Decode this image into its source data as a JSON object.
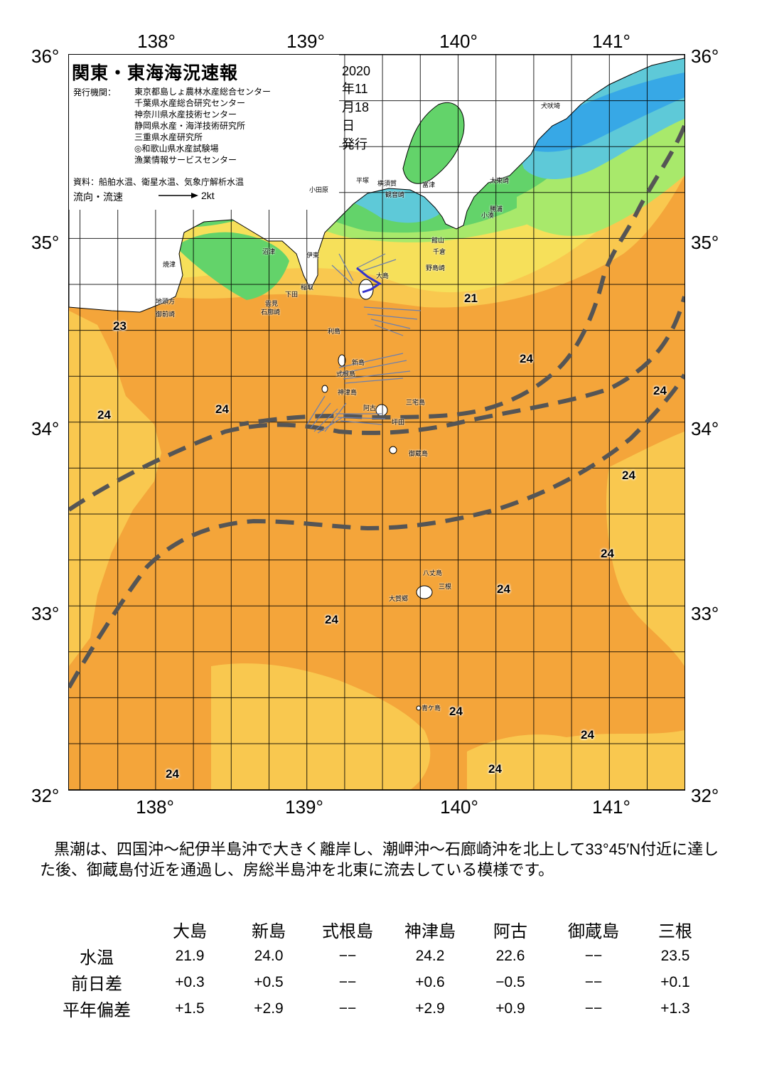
{
  "map": {
    "title": "関東・東海海況速報",
    "issue_date": "2020年11月18日 発行",
    "issuer_label": "発行機関：",
    "issuers": [
      "東京都島しょ農林水産総合センター",
      "千葉県水産総合研究センター",
      "神奈川県水産技術センター",
      "静岡県水産・海洋技術研究所",
      "三重県水産研究所",
      "◎和歌山県水産試験場",
      "漁業情報サービスセンター"
    ],
    "source": "資料：船舶水温、衛星水温、気象庁解析水温",
    "legend_label": "流向・流速",
    "legend_unit": "2kt",
    "lon_labels": [
      "138°",
      "139°",
      "140°",
      "141°"
    ],
    "lat_labels": [
      "36°",
      "35°",
      "34°",
      "33°",
      "32°"
    ],
    "temperature_labels": [
      "23",
      "24",
      "24",
      "21",
      "24",
      "24",
      "24",
      "24",
      "24",
      "24",
      "24",
      "24",
      "24",
      "24"
    ],
    "place_names": [
      "小田原",
      "平塚",
      "横須賀",
      "観音崎",
      "富津",
      "太東崎",
      "犬吠埼",
      "小湊",
      "勝浦",
      "館山",
      "千倉",
      "野島崎",
      "伊東",
      "稲取",
      "下田",
      "石廊崎",
      "沼津",
      "焼津",
      "地頭方",
      "御前崎",
      "利島",
      "新島",
      "式根島",
      "神津島",
      "三宅島",
      "阿古",
      "坪田",
      "御蔵島",
      "八丈島",
      "三根",
      "大賀郷",
      "青ケ島",
      "大島",
      "雲見"
    ],
    "colors": {
      "land": "#ffffff",
      "cold": "#37a8e6",
      "cool": "#5ec9d8",
      "green": "#63d36a",
      "lightgreen": "#a8e96b",
      "yellow": "#f6e05a",
      "lightorange": "#f9c84f",
      "orange": "#f4a53a",
      "kuroshio_line": "#555555",
      "current_vector": "#6a7fb0"
    }
  },
  "description": "黒潮は、四国沖～紀伊半島沖で大きく離岸し、潮岬沖～石廊崎沖を北上して33°45′N付近に達した後、御蔵島付近を通過し、房総半島沖を北東に流去している模様です。",
  "table": {
    "columns": [
      "",
      "大島",
      "新島",
      "式根島",
      "神津島",
      "阿古",
      "御蔵島",
      "三根"
    ],
    "rows": [
      {
        "label": "水温",
        "values": [
          "21.9",
          "24.0",
          "−−",
          "24.2",
          "22.6",
          "−−",
          "23.5"
        ]
      },
      {
        "label": "前日差",
        "values": [
          "+0.3",
          "+0.5",
          "−−",
          "+0.6",
          "−0.5",
          "−−",
          "+0.1"
        ]
      },
      {
        "label": "平年偏差",
        "values": [
          "+1.5",
          "+2.9",
          "−−",
          "+2.9",
          "+0.9",
          "−−",
          "+1.3"
        ]
      }
    ]
  }
}
